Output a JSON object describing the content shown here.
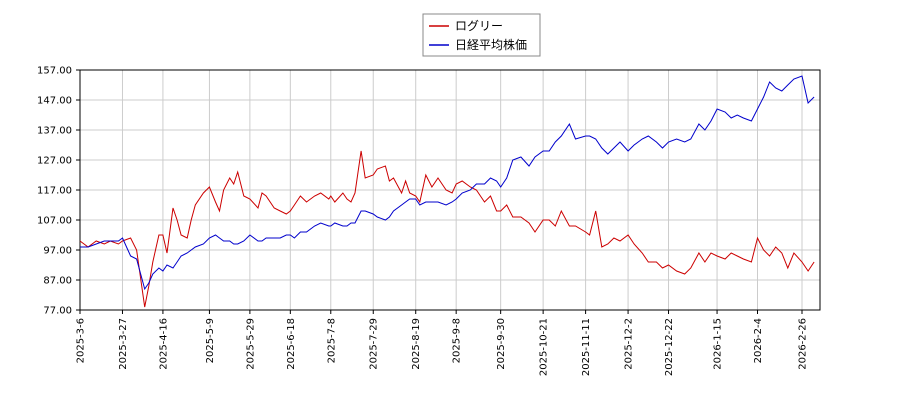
{
  "chart_data": {
    "type": "line",
    "ylim": [
      77,
      157
    ],
    "y_ticks": [
      "157.00",
      "147.00",
      "137.00",
      "127.00",
      "117.00",
      "107.00",
      "97.00",
      "87.00",
      "77.00"
    ],
    "x_ticks": [
      "2025-3-6",
      "2025-3-27",
      "2025-4-16",
      "2025-5-9",
      "2025-5-29",
      "2025-6-18",
      "2025-7-8",
      "2025-7-29",
      "2025-8-19",
      "2025-9-8",
      "2025-9-30",
      "2025-10-21",
      "2025-11-11",
      "2025-12-2",
      "2025-12-22",
      "2026-1-15",
      "2026-2-4",
      "2026-2-26"
    ],
    "grid": true,
    "legend_position": "top-center",
    "series": [
      {
        "name": "ログリー",
        "color": "#cc0000",
        "points": [
          [
            "2025-3-6",
            100
          ],
          [
            "2025-3-10",
            98
          ],
          [
            "2025-3-14",
            100
          ],
          [
            "2025-3-18",
            99
          ],
          [
            "2025-3-21",
            100
          ],
          [
            "2025-3-25",
            99
          ],
          [
            "2025-3-27",
            100
          ],
          [
            "2025-3-31",
            101
          ],
          [
            "2025-4-3",
            97
          ],
          [
            "2025-4-7",
            78
          ],
          [
            "2025-4-9",
            85
          ],
          [
            "2025-4-11",
            93
          ],
          [
            "2025-4-14",
            102
          ],
          [
            "2025-4-16",
            102
          ],
          [
            "2025-4-18",
            96
          ],
          [
            "2025-4-21",
            111
          ],
          [
            "2025-4-23",
            107
          ],
          [
            "2025-4-25",
            102
          ],
          [
            "2025-4-28",
            101
          ],
          [
            "2025-4-30",
            107
          ],
          [
            "2025-5-2",
            112
          ],
          [
            "2025-5-6",
            116
          ],
          [
            "2025-5-9",
            118
          ],
          [
            "2025-5-12",
            113
          ],
          [
            "2025-5-14",
            110
          ],
          [
            "2025-5-16",
            117
          ],
          [
            "2025-5-19",
            121
          ],
          [
            "2025-5-21",
            119
          ],
          [
            "2025-5-23",
            123
          ],
          [
            "2025-5-26",
            115
          ],
          [
            "2025-5-29",
            114
          ],
          [
            "2025-6-2",
            111
          ],
          [
            "2025-6-4",
            116
          ],
          [
            "2025-6-6",
            115
          ],
          [
            "2025-6-10",
            111
          ],
          [
            "2025-6-13",
            110
          ],
          [
            "2025-6-16",
            109
          ],
          [
            "2025-6-18",
            110
          ],
          [
            "2025-6-20",
            112
          ],
          [
            "2025-6-23",
            115
          ],
          [
            "2025-6-26",
            113
          ],
          [
            "2025-6-30",
            115
          ],
          [
            "2025-7-3",
            116
          ],
          [
            "2025-7-7",
            114
          ],
          [
            "2025-7-8",
            115
          ],
          [
            "2025-7-10",
            113
          ],
          [
            "2025-7-14",
            116
          ],
          [
            "2025-7-16",
            114
          ],
          [
            "2025-7-18",
            113
          ],
          [
            "2025-7-20",
            116
          ],
          [
            "2025-7-23",
            130
          ],
          [
            "2025-7-25",
            121
          ],
          [
            "2025-7-29",
            122
          ],
          [
            "2025-7-31",
            124
          ],
          [
            "2025-8-4",
            125
          ],
          [
            "2025-8-6",
            120
          ],
          [
            "2025-8-8",
            121
          ],
          [
            "2025-8-12",
            116
          ],
          [
            "2025-8-14",
            120
          ],
          [
            "2025-8-16",
            116
          ],
          [
            "2025-8-19",
            115
          ],
          [
            "2025-8-21",
            113
          ],
          [
            "2025-8-24",
            122
          ],
          [
            "2025-8-27",
            118
          ],
          [
            "2025-8-30",
            121
          ],
          [
            "2025-9-3",
            117
          ],
          [
            "2025-9-6",
            116
          ],
          [
            "2025-9-8",
            119
          ],
          [
            "2025-9-11",
            120
          ],
          [
            "2025-9-15",
            118
          ],
          [
            "2025-9-18",
            117
          ],
          [
            "2025-9-22",
            113
          ],
          [
            "2025-9-25",
            115
          ],
          [
            "2025-9-28",
            110
          ],
          [
            "2025-9-30",
            110
          ],
          [
            "2025-10-3",
            112
          ],
          [
            "2025-10-6",
            108
          ],
          [
            "2025-10-10",
            108
          ],
          [
            "2025-10-14",
            106
          ],
          [
            "2025-10-17",
            103
          ],
          [
            "2025-10-21",
            107
          ],
          [
            "2025-10-24",
            107
          ],
          [
            "2025-10-27",
            105
          ],
          [
            "2025-10-30",
            110
          ],
          [
            "2025-11-3",
            105
          ],
          [
            "2025-11-6",
            105
          ],
          [
            "2025-11-11",
            103
          ],
          [
            "2025-11-13",
            102
          ],
          [
            "2025-11-16",
            110
          ],
          [
            "2025-11-19",
            98
          ],
          [
            "2025-11-22",
            99
          ],
          [
            "2025-11-25",
            101
          ],
          [
            "2025-11-28",
            100
          ],
          [
            "2025-12-2",
            102
          ],
          [
            "2025-12-5",
            99
          ],
          [
            "2025-12-9",
            96
          ],
          [
            "2025-12-12",
            93
          ],
          [
            "2025-12-16",
            93
          ],
          [
            "2025-12-19",
            91
          ],
          [
            "2025-12-22",
            92
          ],
          [
            "2025-12-26",
            90
          ],
          [
            "2025-12-30",
            89
          ],
          [
            "2026-1-2",
            91
          ],
          [
            "2026-1-6",
            96
          ],
          [
            "2026-1-9",
            93
          ],
          [
            "2026-1-12",
            96
          ],
          [
            "2026-1-15",
            95
          ],
          [
            "2026-1-19",
            94
          ],
          [
            "2026-1-22",
            96
          ],
          [
            "2026-1-25",
            95
          ],
          [
            "2026-1-28",
            94
          ],
          [
            "2026-2-1",
            93
          ],
          [
            "2026-2-4",
            101
          ],
          [
            "2026-2-7",
            97
          ],
          [
            "2026-2-10",
            95
          ],
          [
            "2026-2-13",
            98
          ],
          [
            "2026-2-16",
            96
          ],
          [
            "2026-2-19",
            91
          ],
          [
            "2026-2-22",
            96
          ],
          [
            "2026-2-26",
            93
          ],
          [
            "2026-3-1",
            90
          ],
          [
            "2026-3-4",
            93
          ]
        ]
      },
      {
        "name": "日経平均株価",
        "color": "#0000cc",
        "points": [
          [
            "2025-3-6",
            98
          ],
          [
            "2025-3-10",
            98
          ],
          [
            "2025-3-14",
            99
          ],
          [
            "2025-3-18",
            100
          ],
          [
            "2025-3-21",
            100
          ],
          [
            "2025-3-25",
            100
          ],
          [
            "2025-3-27",
            101
          ],
          [
            "2025-3-31",
            95
          ],
          [
            "2025-4-3",
            94
          ],
          [
            "2025-4-7",
            84
          ],
          [
            "2025-4-9",
            86
          ],
          [
            "2025-4-11",
            89
          ],
          [
            "2025-4-14",
            91
          ],
          [
            "2025-4-16",
            90
          ],
          [
            "2025-4-18",
            92
          ],
          [
            "2025-4-21",
            91
          ],
          [
            "2025-4-23",
            93
          ],
          [
            "2025-4-25",
            95
          ],
          [
            "2025-4-28",
            96
          ],
          [
            "2025-4-30",
            97
          ],
          [
            "2025-5-2",
            98
          ],
          [
            "2025-5-6",
            99
          ],
          [
            "2025-5-9",
            101
          ],
          [
            "2025-5-12",
            102
          ],
          [
            "2025-5-14",
            101
          ],
          [
            "2025-5-16",
            100
          ],
          [
            "2025-5-19",
            100
          ],
          [
            "2025-5-21",
            99
          ],
          [
            "2025-5-23",
            99
          ],
          [
            "2025-5-26",
            100
          ],
          [
            "2025-5-29",
            102
          ],
          [
            "2025-6-2",
            100
          ],
          [
            "2025-6-4",
            100
          ],
          [
            "2025-6-6",
            101
          ],
          [
            "2025-6-10",
            101
          ],
          [
            "2025-6-13",
            101
          ],
          [
            "2025-6-16",
            102
          ],
          [
            "2025-6-18",
            102
          ],
          [
            "2025-6-20",
            101
          ],
          [
            "2025-6-23",
            103
          ],
          [
            "2025-6-26",
            103
          ],
          [
            "2025-6-30",
            105
          ],
          [
            "2025-7-3",
            106
          ],
          [
            "2025-7-7",
            105
          ],
          [
            "2025-7-8",
            105
          ],
          [
            "2025-7-10",
            106
          ],
          [
            "2025-7-14",
            105
          ],
          [
            "2025-7-16",
            105
          ],
          [
            "2025-7-18",
            106
          ],
          [
            "2025-7-20",
            106
          ],
          [
            "2025-7-23",
            110
          ],
          [
            "2025-7-25",
            110
          ],
          [
            "2025-7-29",
            109
          ],
          [
            "2025-7-31",
            108
          ],
          [
            "2025-8-4",
            107
          ],
          [
            "2025-8-6",
            108
          ],
          [
            "2025-8-8",
            110
          ],
          [
            "2025-8-12",
            112
          ],
          [
            "2025-8-14",
            113
          ],
          [
            "2025-8-16",
            114
          ],
          [
            "2025-8-19",
            114
          ],
          [
            "2025-8-21",
            112
          ],
          [
            "2025-8-24",
            113
          ],
          [
            "2025-8-27",
            113
          ],
          [
            "2025-8-30",
            113
          ],
          [
            "2025-9-3",
            112
          ],
          [
            "2025-9-6",
            113
          ],
          [
            "2025-9-8",
            114
          ],
          [
            "2025-9-11",
            116
          ],
          [
            "2025-9-15",
            117
          ],
          [
            "2025-9-18",
            119
          ],
          [
            "2025-9-22",
            119
          ],
          [
            "2025-9-25",
            121
          ],
          [
            "2025-9-28",
            120
          ],
          [
            "2025-9-30",
            118
          ],
          [
            "2025-10-3",
            121
          ],
          [
            "2025-10-6",
            127
          ],
          [
            "2025-10-10",
            128
          ],
          [
            "2025-10-14",
            125
          ],
          [
            "2025-10-17",
            128
          ],
          [
            "2025-10-21",
            130
          ],
          [
            "2025-10-24",
            130
          ],
          [
            "2025-10-27",
            133
          ],
          [
            "2025-10-30",
            135
          ],
          [
            "2025-11-3",
            139
          ],
          [
            "2025-11-6",
            134
          ],
          [
            "2025-11-11",
            135
          ],
          [
            "2025-11-13",
            135
          ],
          [
            "2025-11-16",
            134
          ],
          [
            "2025-11-19",
            131
          ],
          [
            "2025-11-22",
            129
          ],
          [
            "2025-11-25",
            131
          ],
          [
            "2025-11-28",
            133
          ],
          [
            "2025-12-2",
            130
          ],
          [
            "2025-12-5",
            132
          ],
          [
            "2025-12-9",
            134
          ],
          [
            "2025-12-12",
            135
          ],
          [
            "2025-12-16",
            133
          ],
          [
            "2025-12-19",
            131
          ],
          [
            "2025-12-22",
            133
          ],
          [
            "2025-12-26",
            134
          ],
          [
            "2025-12-30",
            133
          ],
          [
            "2026-1-2",
            134
          ],
          [
            "2026-1-6",
            139
          ],
          [
            "2026-1-9",
            137
          ],
          [
            "2026-1-12",
            140
          ],
          [
            "2026-1-15",
            144
          ],
          [
            "2026-1-19",
            143
          ],
          [
            "2026-1-22",
            141
          ],
          [
            "2026-1-25",
            142
          ],
          [
            "2026-1-28",
            141
          ],
          [
            "2026-2-1",
            140
          ],
          [
            "2026-2-4",
            144
          ],
          [
            "2026-2-7",
            148
          ],
          [
            "2026-2-10",
            153
          ],
          [
            "2026-2-13",
            151
          ],
          [
            "2026-2-16",
            150
          ],
          [
            "2026-2-19",
            152
          ],
          [
            "2026-2-22",
            154
          ],
          [
            "2026-2-26",
            155
          ],
          [
            "2026-3-1",
            146
          ],
          [
            "2026-3-4",
            148
          ]
        ]
      }
    ]
  }
}
